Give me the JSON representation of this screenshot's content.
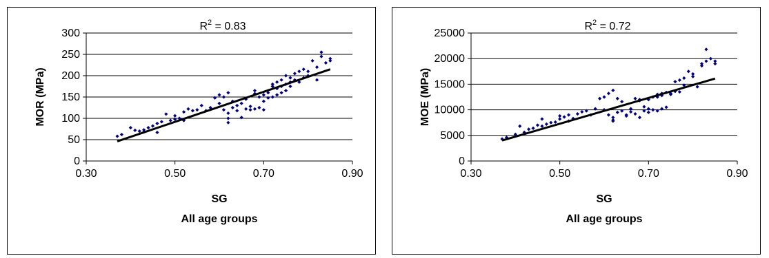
{
  "chart_data": [
    {
      "type": "scatter",
      "xlabel": "SG",
      "subtitle": "All age groups",
      "ylabel": "MOR (MPa)",
      "xlim": [
        0.3,
        0.9
      ],
      "ylim": [
        0,
        300
      ],
      "xticks": [
        "0.30",
        "0.50",
        "0.70",
        "0.90"
      ],
      "yticks": [
        "0",
        "50",
        "100",
        "150",
        "200",
        "250",
        "300"
      ],
      "annotation": {
        "prefix": "R",
        "sup": "2",
        "suffix": " = 0.83"
      },
      "grid": "horizontal",
      "marker_color": "#000080",
      "trendline": {
        "x": [
          0.37,
          0.85
        ],
        "y": [
          46,
          215
        ]
      },
      "points": [
        [
          0.37,
          58
        ],
        [
          0.38,
          62
        ],
        [
          0.4,
          78
        ],
        [
          0.41,
          72
        ],
        [
          0.42,
          70
        ],
        [
          0.43,
          68
        ],
        [
          0.43,
          73
        ],
        [
          0.44,
          78
        ],
        [
          0.45,
          82
        ],
        [
          0.46,
          88
        ],
        [
          0.46,
          67
        ],
        [
          0.47,
          92
        ],
        [
          0.48,
          110
        ],
        [
          0.49,
          95
        ],
        [
          0.5,
          98
        ],
        [
          0.5,
          106
        ],
        [
          0.51,
          100
        ],
        [
          0.52,
          95
        ],
        [
          0.52,
          115
        ],
        [
          0.53,
          122
        ],
        [
          0.54,
          118
        ],
        [
          0.55,
          120
        ],
        [
          0.56,
          130
        ],
        [
          0.57,
          118
        ],
        [
          0.58,
          125
        ],
        [
          0.59,
          148
        ],
        [
          0.6,
          135
        ],
        [
          0.6,
          155
        ],
        [
          0.61,
          150
        ],
        [
          0.61,
          120
        ],
        [
          0.62,
          112
        ],
        [
          0.62,
          100
        ],
        [
          0.62,
          90
        ],
        [
          0.62,
          160
        ],
        [
          0.63,
          140
        ],
        [
          0.63,
          125
        ],
        [
          0.64,
          130
        ],
        [
          0.64,
          118
        ],
        [
          0.65,
          135
        ],
        [
          0.65,
          102
        ],
        [
          0.66,
          145
        ],
        [
          0.66,
          122
        ],
        [
          0.67,
          120
        ],
        [
          0.67,
          128
        ],
        [
          0.68,
          165
        ],
        [
          0.68,
          158
        ],
        [
          0.68,
          122
        ],
        [
          0.69,
          150
        ],
        [
          0.69,
          125
        ],
        [
          0.7,
          140
        ],
        [
          0.7,
          155
        ],
        [
          0.7,
          120
        ],
        [
          0.71,
          148
        ],
        [
          0.71,
          160
        ],
        [
          0.72,
          150
        ],
        [
          0.72,
          175
        ],
        [
          0.72,
          180
        ],
        [
          0.73,
          170
        ],
        [
          0.73,
          155
        ],
        [
          0.73,
          185
        ],
        [
          0.74,
          160
        ],
        [
          0.74,
          190
        ],
        [
          0.74,
          175
        ],
        [
          0.75,
          200
        ],
        [
          0.75,
          180
        ],
        [
          0.75,
          165
        ],
        [
          0.76,
          175
        ],
        [
          0.76,
          185
        ],
        [
          0.76,
          195
        ],
        [
          0.77,
          190
        ],
        [
          0.77,
          205
        ],
        [
          0.78,
          210
        ],
        [
          0.78,
          185
        ],
        [
          0.79,
          215
        ],
        [
          0.79,
          195
        ],
        [
          0.8,
          210
        ],
        [
          0.8,
          200
        ],
        [
          0.81,
          235
        ],
        [
          0.82,
          190
        ],
        [
          0.82,
          220
        ],
        [
          0.83,
          255
        ],
        [
          0.83,
          245
        ],
        [
          0.84,
          230
        ],
        [
          0.85,
          240
        ],
        [
          0.85,
          235
        ]
      ]
    },
    {
      "type": "scatter",
      "xlabel": "SG",
      "subtitle": "All age groups",
      "ylabel": "MOE (MPa)",
      "xlim": [
        0.3,
        0.9
      ],
      "ylim": [
        0,
        25000
      ],
      "xticks": [
        "0.30",
        "0.50",
        "0.70",
        "0.90"
      ],
      "yticks": [
        "0",
        "5000",
        "10000",
        "15000",
        "20000",
        "25000"
      ],
      "annotation": {
        "prefix": "R",
        "sup": "2",
        "suffix": " = 0.72"
      },
      "grid": "horizontal",
      "marker_color": "#000080",
      "trendline": {
        "x": [
          0.37,
          0.85
        ],
        "y": [
          4000,
          16100
        ]
      },
      "points": [
        [
          0.37,
          4300
        ],
        [
          0.38,
          4600
        ],
        [
          0.4,
          5200
        ],
        [
          0.41,
          6800
        ],
        [
          0.42,
          5600
        ],
        [
          0.43,
          6200
        ],
        [
          0.44,
          6400
        ],
        [
          0.45,
          7000
        ],
        [
          0.46,
          8200
        ],
        [
          0.46,
          6800
        ],
        [
          0.47,
          7200
        ],
        [
          0.48,
          7500
        ],
        [
          0.49,
          7600
        ],
        [
          0.5,
          8800
        ],
        [
          0.5,
          8200
        ],
        [
          0.51,
          8600
        ],
        [
          0.52,
          9000
        ],
        [
          0.52,
          7800
        ],
        [
          0.53,
          8300
        ],
        [
          0.54,
          9200
        ],
        [
          0.55,
          9600
        ],
        [
          0.56,
          9800
        ],
        [
          0.57,
          9000
        ],
        [
          0.58,
          10200
        ],
        [
          0.59,
          12200
        ],
        [
          0.6,
          10000
        ],
        [
          0.6,
          12500
        ],
        [
          0.61,
          13200
        ],
        [
          0.61,
          9000
        ],
        [
          0.62,
          8000
        ],
        [
          0.62,
          8500
        ],
        [
          0.62,
          7800
        ],
        [
          0.62,
          13800
        ],
        [
          0.63,
          9500
        ],
        [
          0.63,
          12200
        ],
        [
          0.64,
          11600
        ],
        [
          0.64,
          9800
        ],
        [
          0.65,
          9000
        ],
        [
          0.65,
          8800
        ],
        [
          0.66,
          10200
        ],
        [
          0.66,
          9600
        ],
        [
          0.67,
          12200
        ],
        [
          0.67,
          9200
        ],
        [
          0.68,
          12000
        ],
        [
          0.68,
          11800
        ],
        [
          0.68,
          8500
        ],
        [
          0.69,
          10600
        ],
        [
          0.69,
          9800
        ],
        [
          0.7,
          10200
        ],
        [
          0.7,
          12000
        ],
        [
          0.7,
          9500
        ],
        [
          0.71,
          12500
        ],
        [
          0.71,
          10000
        ],
        [
          0.72,
          13000
        ],
        [
          0.72,
          12500
        ],
        [
          0.72,
          9800
        ],
        [
          0.73,
          13200
        ],
        [
          0.73,
          10200
        ],
        [
          0.73,
          12800
        ],
        [
          0.74,
          13400
        ],
        [
          0.74,
          10500
        ],
        [
          0.75,
          13200
        ],
        [
          0.75,
          13000
        ],
        [
          0.76,
          15500
        ],
        [
          0.76,
          13600
        ],
        [
          0.77,
          15800
        ],
        [
          0.77,
          13500
        ],
        [
          0.78,
          16200
        ],
        [
          0.78,
          14800
        ],
        [
          0.79,
          17500
        ],
        [
          0.8,
          17000
        ],
        [
          0.8,
          16500
        ],
        [
          0.81,
          14500
        ],
        [
          0.82,
          19000
        ],
        [
          0.82,
          18600
        ],
        [
          0.83,
          21800
        ],
        [
          0.83,
          19500
        ],
        [
          0.84,
          20000
        ],
        [
          0.85,
          19000
        ],
        [
          0.85,
          19500
        ]
      ]
    }
  ]
}
